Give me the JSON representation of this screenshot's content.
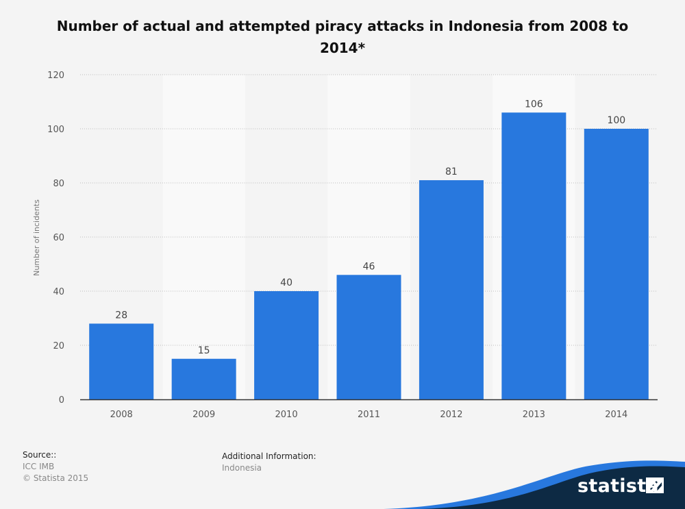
{
  "title": "Number of actual and attempted piracy attacks in Indonesia from 2008 to 2014*",
  "footer": {
    "source_label": "Source::",
    "source_lines": [
      "ICC IMB",
      "© Statista 2015"
    ],
    "additional_label": "Additional Information:",
    "additional_value": "Indonesia",
    "brand": "statista"
  },
  "colors": {
    "bar": "#2878de",
    "background": "#f4f4f4",
    "band": "#f9f9f9",
    "brand_dark": "#0d2a44",
    "brand_blue": "#2878de"
  },
  "chart_data": {
    "type": "bar",
    "title": "Number of actual and attempted piracy attacks in Indonesia from 2008 to 2014*",
    "xlabel": "",
    "ylabel": "Number of incidents",
    "categories": [
      "2008",
      "2009",
      "2010",
      "2011",
      "2012",
      "2013",
      "2014"
    ],
    "values": [
      28,
      15,
      40,
      46,
      81,
      106,
      100
    ],
    "ylim": [
      0,
      120
    ],
    "yticks": [
      0,
      20,
      40,
      60,
      80,
      100,
      120
    ],
    "grid": true,
    "legend": "none"
  }
}
